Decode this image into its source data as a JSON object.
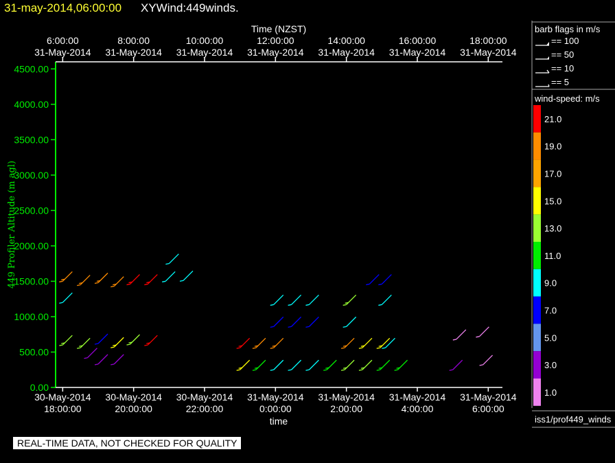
{
  "header": {
    "date_title": "31-may-2014,06:00:00",
    "plot_title": "XYWind:449winds."
  },
  "notice": "REAL-TIME DATA, NOT CHECKED FOR QUALITY",
  "sidebar": {
    "barb_title": "barb flags in m/s",
    "barbs": [
      {
        "value": "== 100"
      },
      {
        "value": "== 50"
      },
      {
        "value": "== 10"
      },
      {
        "value": "== 5"
      }
    ],
    "scale_title": "wind-speed: m/s",
    "scale": [
      {
        "label": "21.0",
        "color": "#ff0000"
      },
      {
        "label": "19.0",
        "color": "#ff8c00"
      },
      {
        "label": "17.0",
        "color": "#ffa500"
      },
      {
        "label": "15.0",
        "color": "#ffff00"
      },
      {
        "label": "13.0",
        "color": "#9aff32"
      },
      {
        "label": "11.0",
        "color": "#00ee00"
      },
      {
        "label": "9.0",
        "color": "#00ffff"
      },
      {
        "label": "7.0",
        "color": "#0000ff"
      },
      {
        "label": "5.0",
        "color": "#6495ed"
      },
      {
        "label": "3.0",
        "color": "#9400d3"
      },
      {
        "label": "1.0",
        "color": "#ee82ee"
      }
    ],
    "footer": "iss1/prof449_winds"
  },
  "chart_data": {
    "type": "scatter",
    "title": "XYWind:449winds.",
    "xlabel": "time",
    "top_xlabel": "Time (NZST)",
    "ylabel": "449 Profiler Altitude (m agl)",
    "ylim": [
      0,
      4600
    ],
    "xlim_hours": [
      -0.2,
      12.4
    ],
    "yticks": [
      "4500.00",
      "4000.00",
      "3500.00",
      "3000.00",
      "2500.00",
      "2000.00",
      "1500.00",
      "1000.00",
      "500.00",
      "0.00"
    ],
    "ytick_values": [
      4500,
      4000,
      3500,
      3000,
      2500,
      2000,
      1500,
      1000,
      500,
      0
    ],
    "bottom_ticks": [
      {
        "h": 0,
        "line1": "30-May-2014",
        "line2": "18:00:00"
      },
      {
        "h": 2,
        "line1": "30-May-2014",
        "line2": "20:00:00"
      },
      {
        "h": 4,
        "line1": "30-May-2014",
        "line2": "22:00:00"
      },
      {
        "h": 6,
        "line1": "31-May-2014",
        "line2": "0:00:00"
      },
      {
        "h": 8,
        "line1": "31-May-2014",
        "line2": "2:00:00"
      },
      {
        "h": 10,
        "line1": "31-May-2014",
        "line2": "4:00:00"
      },
      {
        "h": 12,
        "line1": "31-May-2014",
        "line2": "6:00:00"
      }
    ],
    "top_ticks": [
      {
        "h": 0,
        "line1": "6:00:00",
        "line2": "31-May-2014"
      },
      {
        "h": 2,
        "line1": "8:00:00",
        "line2": "31-May-2014"
      },
      {
        "h": 4,
        "line1": "10:00:00",
        "line2": "31-May-2014"
      },
      {
        "h": 6,
        "line1": "12:00:00",
        "line2": "31-May-2014"
      },
      {
        "h": 8,
        "line1": "14:00:00",
        "line2": "31-May-2014"
      },
      {
        "h": 10,
        "line1": "16:00:00",
        "line2": "31-May-2014"
      },
      {
        "h": 12,
        "line1": "18:00:00",
        "line2": "31-May-2014"
      }
    ],
    "barbs": [
      {
        "h": 0.0,
        "alt": 1500,
        "speed": 19
      },
      {
        "h": 0.0,
        "alt": 1200,
        "speed": 9
      },
      {
        "h": 0.0,
        "alt": 600,
        "speed": 13
      },
      {
        "h": 0.5,
        "alt": 1450,
        "speed": 19
      },
      {
        "h": 0.5,
        "alt": 560,
        "speed": 13
      },
      {
        "h": 0.7,
        "alt": 420,
        "speed": 3
      },
      {
        "h": 1.0,
        "alt": 1480,
        "speed": 19
      },
      {
        "h": 1.0,
        "alt": 620,
        "speed": 7
      },
      {
        "h": 1.0,
        "alt": 330,
        "speed": 3
      },
      {
        "h": 1.45,
        "alt": 1430,
        "speed": 19
      },
      {
        "h": 1.45,
        "alt": 570,
        "speed": 15
      },
      {
        "h": 1.45,
        "alt": 330,
        "speed": 3
      },
      {
        "h": 1.9,
        "alt": 1460,
        "speed": 21
      },
      {
        "h": 1.9,
        "alt": 610,
        "speed": 13
      },
      {
        "h": 2.4,
        "alt": 1460,
        "speed": 21
      },
      {
        "h": 2.4,
        "alt": 600,
        "speed": 21
      },
      {
        "h": 2.9,
        "alt": 1500,
        "speed": 9
      },
      {
        "h": 3.0,
        "alt": 1750,
        "speed": 9
      },
      {
        "h": 3.4,
        "alt": 1510,
        "speed": 9
      },
      {
        "h": 5.0,
        "alt": 560,
        "speed": 21
      },
      {
        "h": 5.0,
        "alt": 250,
        "speed": 15
      },
      {
        "h": 5.45,
        "alt": 560,
        "speed": 19
      },
      {
        "h": 5.45,
        "alt": 250,
        "speed": 11
      },
      {
        "h": 5.95,
        "alt": 1170,
        "speed": 9
      },
      {
        "h": 5.95,
        "alt": 860,
        "speed": 7
      },
      {
        "h": 5.95,
        "alt": 560,
        "speed": 19
      },
      {
        "h": 5.95,
        "alt": 250,
        "speed": 9
      },
      {
        "h": 6.45,
        "alt": 1170,
        "speed": 9
      },
      {
        "h": 6.45,
        "alt": 860,
        "speed": 7
      },
      {
        "h": 6.45,
        "alt": 250,
        "speed": 9
      },
      {
        "h": 6.95,
        "alt": 1170,
        "speed": 9
      },
      {
        "h": 6.95,
        "alt": 860,
        "speed": 7
      },
      {
        "h": 6.95,
        "alt": 250,
        "speed": 9
      },
      {
        "h": 7.45,
        "alt": 250,
        "speed": 11
      },
      {
        "h": 7.95,
        "alt": 560,
        "speed": 19
      },
      {
        "h": 7.95,
        "alt": 250,
        "speed": 13
      },
      {
        "h": 8.0,
        "alt": 1170,
        "speed": 13
      },
      {
        "h": 8.0,
        "alt": 860,
        "speed": 9
      },
      {
        "h": 8.45,
        "alt": 560,
        "speed": 15
      },
      {
        "h": 8.45,
        "alt": 250,
        "speed": 13
      },
      {
        "h": 8.65,
        "alt": 1460,
        "speed": 7
      },
      {
        "h": 8.95,
        "alt": 560,
        "speed": 15
      },
      {
        "h": 8.95,
        "alt": 250,
        "speed": 11
      },
      {
        "h": 9.0,
        "alt": 1170,
        "speed": 9
      },
      {
        "h": 9.0,
        "alt": 1460,
        "speed": 7
      },
      {
        "h": 9.1,
        "alt": 560,
        "speed": 9
      },
      {
        "h": 9.45,
        "alt": 250,
        "speed": 11
      },
      {
        "h": 11.0,
        "alt": 250,
        "speed": 3
      },
      {
        "h": 11.1,
        "alt": 680,
        "speed": 1
      },
      {
        "h": 11.75,
        "alt": 720,
        "speed": 1
      },
      {
        "h": 11.85,
        "alt": 320,
        "speed": 1
      }
    ]
  }
}
